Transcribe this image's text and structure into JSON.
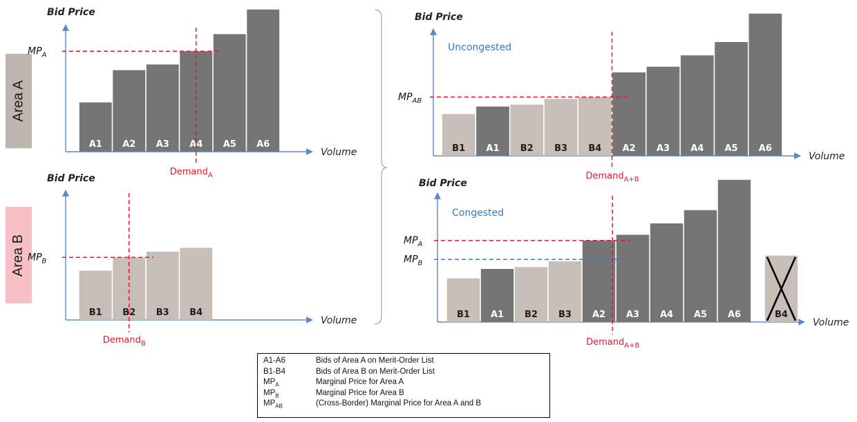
{
  "areas": {
    "a": "Area A",
    "b": "Area B"
  },
  "colors": {
    "area_a": "#757575",
    "area_b": "#c7beb8",
    "marker": "#e3182d",
    "congested_mpb": "#4a76a8",
    "annotation_blue": "#3d78b8",
    "axis": "#5b87c7"
  },
  "chart_data": [
    {
      "panel": "area-a",
      "type": "bar",
      "ylabel": "Bid Price",
      "xlabel": "Volume",
      "categories": [
        "A1",
        "A2",
        "A3",
        "A4",
        "A5",
        "A6"
      ],
      "values": [
        1.3,
        2.15,
        2.3,
        2.65,
        3.1,
        3.75
      ],
      "bar_area": [
        "A",
        "A",
        "A",
        "A",
        "A",
        "A"
      ],
      "ylim": [
        0,
        4.0
      ],
      "marginal_price": {
        "label": "MP",
        "sub": "A",
        "value": 2.65,
        "color": "red"
      },
      "demand": {
        "label": "Demand",
        "sub": "A",
        "position_in_bars": 3.5
      }
    },
    {
      "panel": "area-b",
      "type": "bar",
      "ylabel": "Bid Price",
      "xlabel": "Volume",
      "categories": [
        "B1",
        "B2",
        "B3",
        "B4"
      ],
      "values": [
        1.3,
        1.65,
        1.8,
        1.9
      ],
      "bar_area": [
        "B",
        "B",
        "B",
        "B"
      ],
      "ylim": [
        0,
        4.0
      ],
      "marginal_price": {
        "label": "MP",
        "sub": "B",
        "value": 1.65,
        "color": "red"
      },
      "demand": {
        "label": "Demand",
        "sub": "B",
        "position_in_bars": 1.5
      }
    },
    {
      "panel": "uncongested",
      "type": "bar",
      "ylabel": "Bid Price",
      "xlabel": "Volume",
      "annotation": "Uncongested",
      "categories": [
        "B1",
        "A1",
        "B2",
        "B3",
        "B4",
        "A2",
        "A3",
        "A4",
        "A5",
        "A6"
      ],
      "values": [
        1.1,
        1.3,
        1.35,
        1.5,
        1.55,
        2.2,
        2.35,
        2.65,
        3.0,
        3.75
      ],
      "bar_area": [
        "B",
        "A",
        "B",
        "B",
        "B",
        "A",
        "A",
        "A",
        "A",
        "A"
      ],
      "ylim": [
        0,
        4.0
      ],
      "marginal_price": {
        "label": "MP",
        "sub": "AB",
        "value": 1.55,
        "color": "red"
      },
      "demand": {
        "label": "Demand",
        "sub": "A+B",
        "position_in_bars": 5.0
      }
    },
    {
      "panel": "congested",
      "type": "bar",
      "ylabel": "Bid Price",
      "xlabel": "Volume",
      "annotation": "Congested",
      "categories": [
        "B1",
        "A1",
        "B2",
        "B3",
        "A2",
        "A3",
        "A4",
        "A5",
        "A6",
        "B4"
      ],
      "values": [
        1.15,
        1.4,
        1.45,
        1.6,
        2.15,
        2.3,
        2.6,
        2.95,
        3.75,
        1.75
      ],
      "bar_area": [
        "B",
        "A",
        "B",
        "B",
        "A",
        "A",
        "A",
        "A",
        "A",
        "B"
      ],
      "excluded": [
        "B4"
      ],
      "ylim": [
        0,
        4.0
      ],
      "marginal_price": {
        "label": "MP",
        "sub": "A",
        "value": 2.15,
        "color": "red"
      },
      "marginal_price_b": {
        "label": "MP",
        "sub": "B",
        "value": 1.65,
        "color": "blue"
      },
      "demand": {
        "label": "Demand",
        "sub": "A+B",
        "position_in_bars": 4.9
      }
    }
  ],
  "legend": [
    {
      "key": "A1-A6",
      "key_sub": "",
      "desc": "Bids of Area A on Merit-Order List"
    },
    {
      "key": "B1-B4",
      "key_sub": "",
      "desc": "Bids of Area B on Merit-Order List"
    },
    {
      "key": "MP",
      "key_sub": "A",
      "desc": "Marginal Price for Area A"
    },
    {
      "key": "MP",
      "key_sub": "B",
      "desc": "Marginal Price for Area B"
    },
    {
      "key": "MP",
      "key_sub": "AB",
      "desc": "(Cross-Border) Marginal Price for Area A and B"
    }
  ]
}
